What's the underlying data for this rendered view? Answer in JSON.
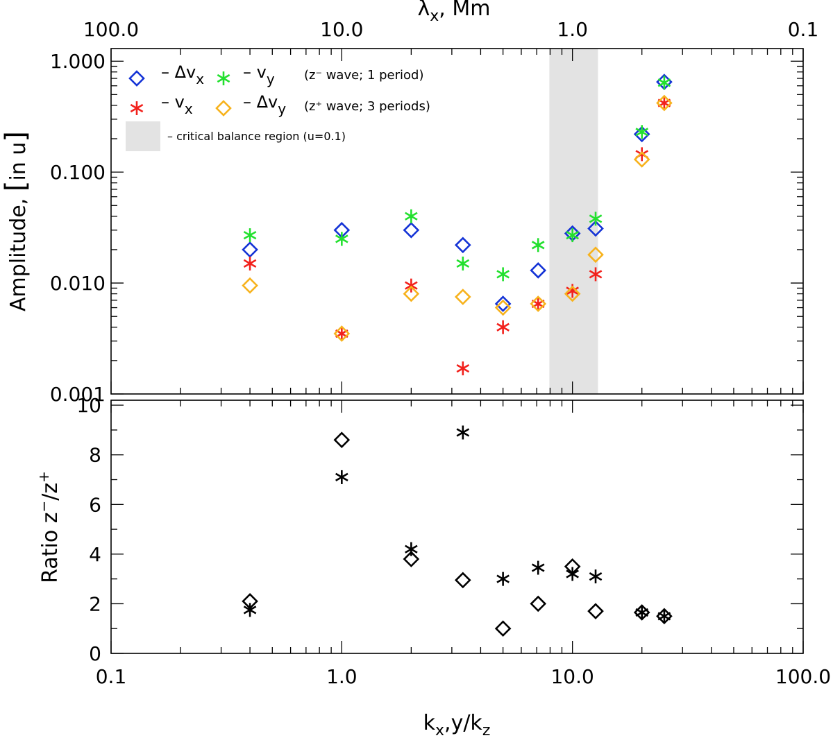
{
  "chart_data": {
    "type": "scatter",
    "panels": [
      {
        "name": "amplitude",
        "ylabel_main": "Amplitude,",
        "ylabel_unit": "in u",
        "xscale": "log",
        "yscale": "log",
        "xlim": [
          0.1,
          100
        ],
        "ylim": [
          0.001,
          1.3
        ],
        "ytick_labels": [
          "0.001",
          "0.010",
          "0.100",
          "1.000"
        ],
        "ytick_values": [
          0.001,
          0.01,
          0.1,
          1.0
        ],
        "shaded_region": {
          "x": [
            7.94,
            12.9
          ],
          "label": "– critical balance region (u=0.1)",
          "color": "#e3e3e3"
        },
        "series": [
          {
            "name": "Δv",
            "sub": "x",
            "marker": "diamond",
            "color": "#1433d6",
            "x": [
              0.4,
              1.0,
              2.0,
              3.35,
              5.0,
              7.1,
              10.0,
              12.6,
              20.0,
              25.0
            ],
            "y": [
              0.02,
              0.03,
              0.03,
              0.022,
              0.0065,
              0.013,
              0.028,
              0.031,
              0.22,
              0.65
            ]
          },
          {
            "name": "v",
            "sub": "y",
            "marker": "asterisk",
            "color": "#22e02e",
            "x": [
              0.4,
              1.0,
              2.0,
              3.35,
              5.0,
              7.1,
              10.0,
              12.6,
              20.0,
              25.0
            ],
            "y": [
              0.027,
              0.025,
              0.04,
              0.015,
              0.012,
              0.022,
              0.027,
              0.038,
              0.23,
              0.64
            ]
          },
          {
            "name": "v",
            "sub": "x",
            "marker": "asterisk",
            "color": "#f2211c",
            "x": [
              0.4,
              1.0,
              2.0,
              3.35,
              5.0,
              7.1,
              10.0,
              12.6,
              20.0,
              25.0
            ],
            "y": [
              0.015,
              0.0035,
              0.0095,
              0.0017,
              0.004,
              0.0065,
              0.0085,
              0.012,
              0.145,
              0.42
            ]
          },
          {
            "name": "Δv",
            "sub": "y",
            "marker": "diamond",
            "color": "#f7b21c",
            "x": [
              0.4,
              1.0,
              2.0,
              3.35,
              5.0,
              7.1,
              10.0,
              12.6,
              20.0,
              25.0
            ],
            "y": [
              0.0095,
              0.0035,
              0.008,
              0.0075,
              0.006,
              0.0065,
              0.008,
              0.018,
              0.13,
              0.42
            ]
          }
        ],
        "legend": {
          "row1_note": "(z⁻ wave; 1 period)",
          "row2_note": "(z⁺ wave; 3 periods)",
          "dash": "–"
        }
      },
      {
        "name": "ratio",
        "ylabel": "Ratio z⁻/z⁺",
        "xscale": "log",
        "yscale": "linear",
        "xlim": [
          0.1,
          100
        ],
        "ylim": [
          0,
          10.2
        ],
        "ytick_labels": [
          "0",
          "2",
          "4",
          "6",
          "8",
          "10"
        ],
        "ytick_values": [
          0,
          2,
          4,
          6,
          8,
          10
        ],
        "series": [
          {
            "name": "diamond",
            "marker": "diamond",
            "color": "#000000",
            "x": [
              0.4,
              1.0,
              2.0,
              3.35,
              5.0,
              7.1,
              10.0,
              12.6,
              20.0,
              25.0
            ],
            "y": [
              2.1,
              8.6,
              3.8,
              2.95,
              1.0,
              2.0,
              3.5,
              1.7,
              1.65,
              1.5
            ]
          },
          {
            "name": "asterisk",
            "marker": "asterisk",
            "color": "#000000",
            "x": [
              0.4,
              1.0,
              2.0,
              3.35,
              5.0,
              7.1,
              10.0,
              12.6,
              20.0,
              25.0
            ],
            "y": [
              1.75,
              7.1,
              4.2,
              8.9,
              3.0,
              3.45,
              3.2,
              3.1,
              1.65,
              1.5
            ]
          }
        ]
      }
    ],
    "xlabel": "kx,y/kz",
    "xtick_labels": [
      "0.1",
      "1.0",
      "10.0",
      "100.0"
    ],
    "xtick_values": [
      0.1,
      1,
      10,
      100
    ],
    "top_axis": {
      "label": "λx, Mm",
      "tick_labels": [
        "100.0",
        "10.0",
        "1.0",
        "0.1"
      ]
    }
  }
}
